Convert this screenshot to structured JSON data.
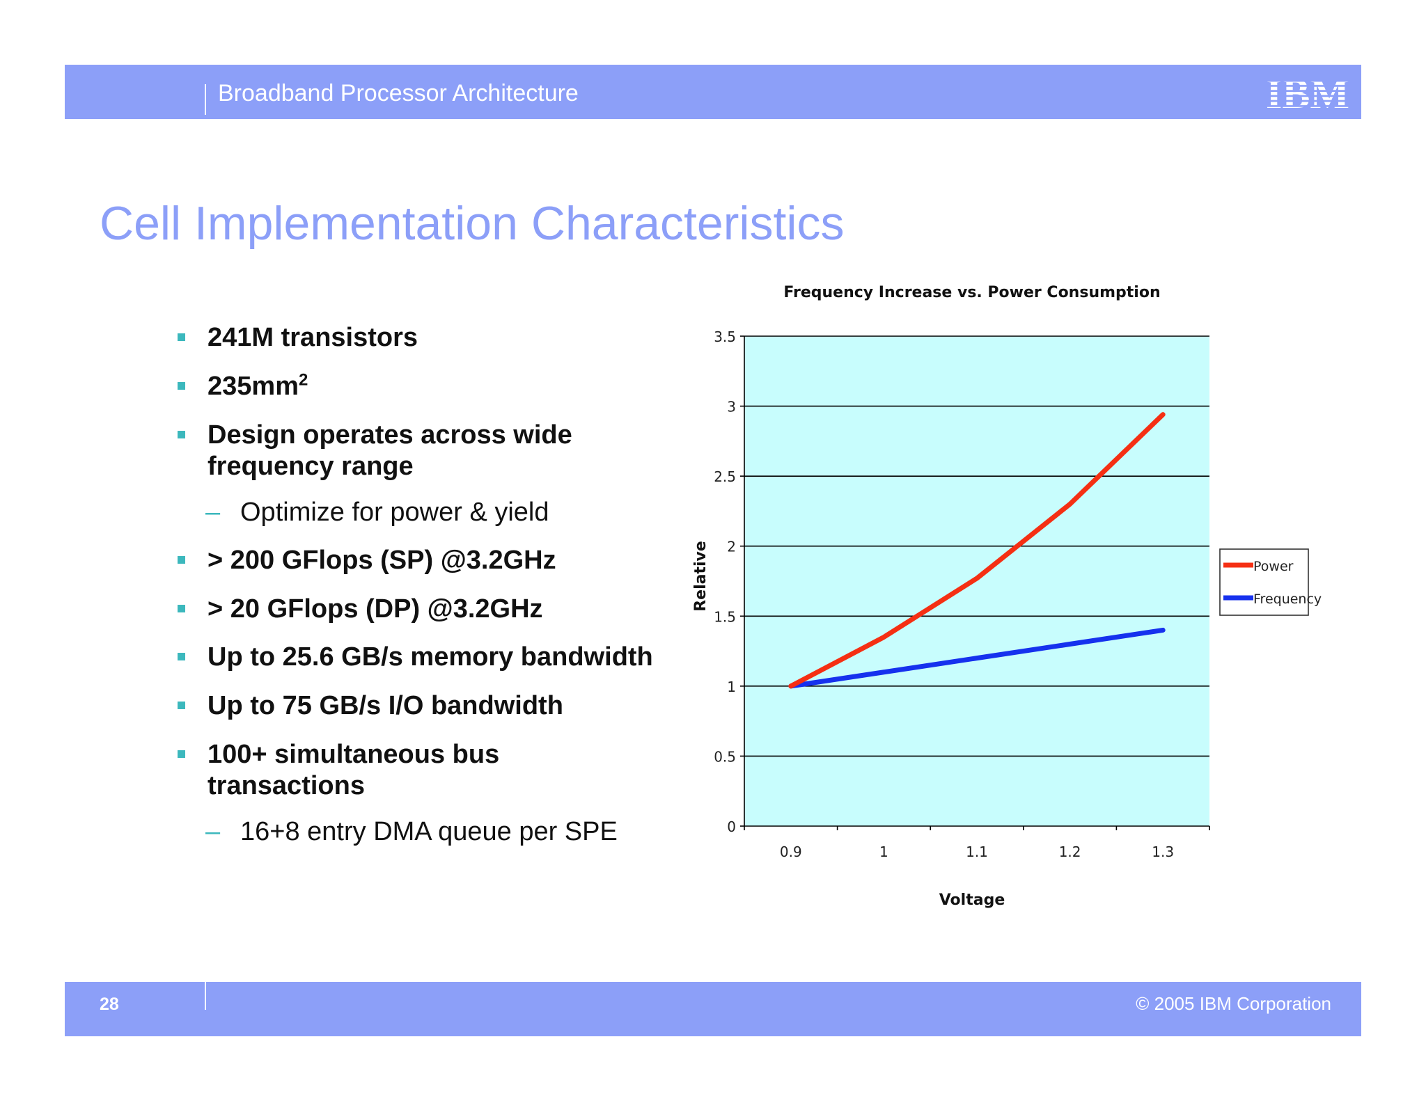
{
  "header": {
    "title": "Broadband Processor Architecture",
    "logo_text": "IBM"
  },
  "slide": {
    "title": "Cell Implementation Characteristics"
  },
  "bullets": [
    {
      "text": "241M transistors"
    },
    {
      "text": "235mm",
      "sup": "2"
    },
    {
      "text": "Design operates across wide",
      "text2": "frequency range"
    },
    {
      "text": "Optimize for power & yield",
      "sub": true
    },
    {
      "text": "> 200 GFlops (SP) @3.2GHz"
    },
    {
      "text": "> 20 GFlops (DP) @3.2GHz"
    },
    {
      "text": "Up to 25.6 GB/s memory bandwidth"
    },
    {
      "text": "Up to 75 GB/s I/O bandwidth"
    },
    {
      "text": "100+ simultaneous bus",
      "text2": "transactions"
    },
    {
      "text": "16+8 entry DMA queue per SPE",
      "sub": true
    }
  ],
  "chart_data": {
    "type": "line",
    "title": "Frequency Increase vs. Power Consumption",
    "xlabel": "Voltage",
    "ylabel": "Relative",
    "x": [
      0.9,
      1.0,
      1.1,
      1.2,
      1.3
    ],
    "x_tick_labels": [
      "0.9",
      "1",
      "1.1",
      "1.2",
      "1.3"
    ],
    "y_tick_labels": [
      "0",
      "0.5",
      "1",
      "1.5",
      "2",
      "2.5",
      "3",
      "3.5"
    ],
    "ylim": [
      0,
      3.5
    ],
    "grid": "horizontal",
    "legend_position": "right",
    "plot_background": "#c8fdfd",
    "series": [
      {
        "name": "Power",
        "color": "#f52f13",
        "values": [
          1.0,
          1.35,
          1.77,
          2.3,
          2.94
        ]
      },
      {
        "name": "Frequency",
        "color": "#1631ee",
        "values": [
          1.0,
          1.1,
          1.2,
          1.3,
          1.4
        ]
      }
    ]
  },
  "footer": {
    "page_number": "28",
    "copyright": "© 2005 IBM Corporation"
  }
}
